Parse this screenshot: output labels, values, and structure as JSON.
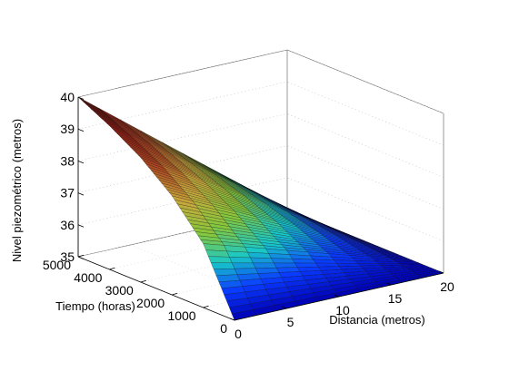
{
  "chart_data": {
    "type": "surface",
    "title": "",
    "zlabel": "Nivel piezométrico (metros)",
    "tlabel": "Tiempo (horas)",
    "xlabel": "Distancia (metros)",
    "z_ticks": [
      "35",
      "36",
      "37",
      "38",
      "39",
      "40"
    ],
    "t_ticks": [
      "0",
      "1000",
      "2000",
      "3000",
      "4000",
      "5000"
    ],
    "x_ticks": [
      "0",
      "5",
      "10",
      "15",
      "20"
    ],
    "zlim": [
      35,
      40
    ],
    "tlim": [
      0,
      5000
    ],
    "xlim": [
      0,
      20
    ],
    "surface_samples": {
      "x": [
        0,
        20
      ],
      "t": [
        0,
        1000,
        2000,
        3000,
        4000,
        5000
      ],
      "z_at_x0": [
        35.0,
        37.0,
        38.1,
        38.9,
        39.5,
        40.0
      ],
      "z_at_x20": [
        35.0,
        35.0,
        35.0,
        35.0,
        35.0,
        35.0
      ]
    },
    "colormap": [
      "#0000b4",
      "#0a3cff",
      "#18c8c8",
      "#86c83c",
      "#c8a83c",
      "#b04a22",
      "#8a1a12",
      "#3a0a08"
    ],
    "grid": true
  }
}
